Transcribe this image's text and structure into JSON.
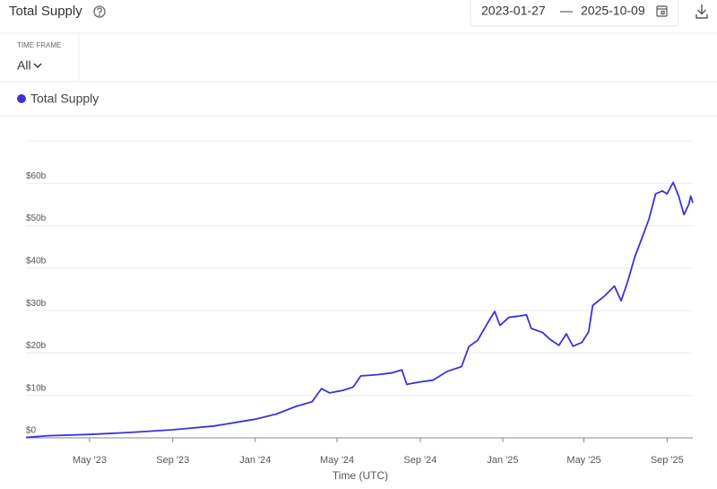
{
  "header": {
    "title": "Total Supply",
    "date_start": "2023-01-27",
    "separator": "—",
    "date_end": "2025-10-09"
  },
  "controls": {
    "time_frame_label": "TIME FRAME",
    "time_frame_value": "All"
  },
  "chart_data": {
    "type": "line",
    "x_label": "Time (UTC)",
    "x": [
      "2023-01-27",
      "2023-03-01",
      "2023-05-01",
      "2023-07-01",
      "2023-09-01",
      "2023-11-01",
      "2024-01-01",
      "2024-02-01",
      "2024-03-01",
      "2024-03-25",
      "2024-04-08",
      "2024-04-20",
      "2024-05-10",
      "2024-05-25",
      "2024-06-05",
      "2024-07-01",
      "2024-07-20",
      "2024-08-05",
      "2024-08-12",
      "2024-09-01",
      "2024-09-20",
      "2024-10-10",
      "2024-11-01",
      "2024-11-12",
      "2024-11-25",
      "2024-12-10",
      "2024-12-20",
      "2024-12-28",
      "2025-01-10",
      "2025-01-25",
      "2025-02-05",
      "2025-02-12",
      "2025-03-01",
      "2025-03-12",
      "2025-03-25",
      "2025-04-05",
      "2025-04-15",
      "2025-04-28",
      "2025-05-08",
      "2025-05-14",
      "2025-06-01",
      "2025-06-15",
      "2025-06-25",
      "2025-07-05",
      "2025-07-15",
      "2025-07-28",
      "2025-08-05",
      "2025-08-15",
      "2025-08-25",
      "2025-09-01",
      "2025-09-10",
      "2025-09-18",
      "2025-09-26",
      "2025-10-03",
      "2025-10-06",
      "2025-10-09"
    ],
    "series": [
      {
        "name": "Total Supply",
        "color": "#3d32d9",
        "values": [
          0.1,
          0.5,
          0.8,
          1.3,
          1.9,
          2.8,
          4.4,
          5.6,
          7.4,
          8.5,
          11.6,
          10.6,
          11.2,
          12.0,
          14.6,
          14.9,
          15.3,
          16.0,
          12.6,
          13.2,
          13.6,
          15.6,
          16.8,
          21.5,
          23.0,
          27.2,
          29.8,
          26.5,
          28.4,
          28.7,
          29.0,
          25.8,
          24.8,
          23.2,
          21.8,
          24.5,
          21.6,
          22.5,
          25.0,
          31.2,
          33.5,
          35.8,
          32.3,
          37.0,
          42.5,
          48.0,
          51.5,
          57.5,
          58.2,
          57.5,
          60.2,
          57.0,
          52.6,
          55.0,
          57.0,
          55.4
        ]
      }
    ],
    "xlim": [
      "2023-01-27",
      "2025-10-09"
    ],
    "xticks": [
      {
        "value": "2023-05-01",
        "label": "May '23"
      },
      {
        "value": "2023-09-01",
        "label": "Sep '23"
      },
      {
        "value": "2024-01-01",
        "label": "Jan '24"
      },
      {
        "value": "2024-05-01",
        "label": "May '24"
      },
      {
        "value": "2024-09-01",
        "label": "Sep '24"
      },
      {
        "value": "2025-01-01",
        "label": "Jan '25"
      },
      {
        "value": "2025-05-01",
        "label": "May '25"
      },
      {
        "value": "2025-09-01",
        "label": "Sep '25"
      }
    ],
    "ylim": [
      0,
      70
    ],
    "yticks": [
      {
        "value": 0,
        "label": "$0"
      },
      {
        "value": 10,
        "label": "$10b"
      },
      {
        "value": 20,
        "label": "$20b"
      },
      {
        "value": 30,
        "label": "$30b"
      },
      {
        "value": 40,
        "label": "$40b"
      },
      {
        "value": 50,
        "label": "$50b"
      },
      {
        "value": 60,
        "label": "$60b"
      }
    ],
    "grid": true
  }
}
